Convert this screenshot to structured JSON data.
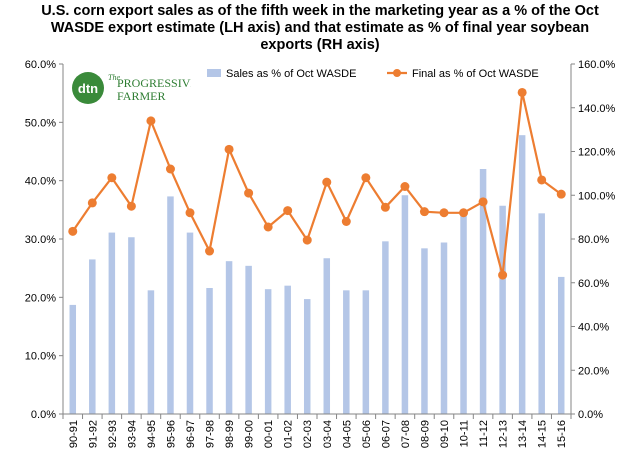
{
  "chart_data": {
    "type": "bar+line",
    "title_lines": [
      "U.S. corn export sales as of the fifth week in the marketing year as a %  of the Oct",
      "WASDE  export estimate (LH axis) and that estimate as % of final year soybean",
      "exports (RH axis)"
    ],
    "categories": [
      "90-91",
      "91-92",
      "92-93",
      "93-94",
      "94-95",
      "95-96",
      "96-97",
      "97-98",
      "98-99",
      "99-00",
      "00-01",
      "01-02",
      "02-03",
      "03-04",
      "04-05",
      "05-06",
      "06-07",
      "07-08",
      "08-09",
      "09-10",
      "10-11",
      "11-12",
      "12-13",
      "13-14",
      "14-15",
      "15-16"
    ],
    "series": [
      {
        "name": "Sales as % of Oct WASDE",
        "kind": "bar",
        "axis": "left",
        "color": "#b4c6e7",
        "values": [
          18.7,
          26.5,
          31.1,
          30.3,
          21.2,
          37.3,
          31.1,
          21.6,
          26.2,
          25.4,
          21.4,
          22.0,
          19.7,
          26.7,
          21.2,
          21.2,
          29.6,
          37.5,
          28.4,
          29.4,
          34.0,
          42.0,
          35.7,
          47.8,
          34.4,
          23.5
        ]
      },
      {
        "name": "Final as % of Oct WASDE",
        "kind": "line",
        "axis": "right",
        "color": "#ed7d31",
        "values": [
          83.5,
          96.5,
          108.0,
          95.0,
          134.0,
          112.0,
          92.0,
          74.5,
          121.0,
          101.0,
          85.5,
          93.0,
          79.5,
          106.0,
          88.0,
          108.0,
          94.5,
          104.0,
          92.5,
          92.0,
          92.0,
          97.0,
          63.5,
          147.0,
          107.0,
          100.5
        ]
      }
    ],
    "y_left": {
      "min": 0,
      "max": 60,
      "step": 10,
      "ticks": [
        "0.0%",
        "10.0%",
        "20.0%",
        "30.0%",
        "40.0%",
        "50.0%",
        "60.0%"
      ]
    },
    "y_right": {
      "min": 0,
      "max": 160,
      "step": 20,
      "ticks": [
        "0.0%",
        "20.0%",
        "40.0%",
        "60.0%",
        "80.0%",
        "100.0%",
        "120.0%",
        "140.0%",
        "160.0%"
      ]
    },
    "grid": false,
    "legend_position": "top"
  },
  "logo": {
    "dtn": "dtn",
    "progressive": "PROGRESSIVE",
    "the": "The",
    "farmer": "FARMER"
  }
}
